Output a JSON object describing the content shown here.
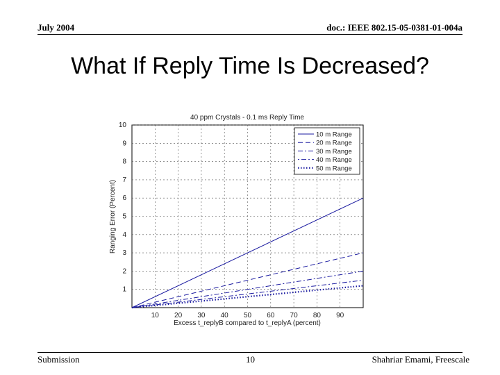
{
  "header": {
    "left": "July 2004",
    "right": "doc.: IEEE 802.15-05-0381-01-004a"
  },
  "slide_title": "What If Reply Time Is Decreased?",
  "footer": {
    "left": "Submission",
    "center": "10",
    "right": "Shahriar Emami, Freescale"
  },
  "chart_data": {
    "type": "line",
    "title": "40 ppm Crystals - 0.1 ms Reply Time",
    "xlabel": "Excess t_replyB compared to t_replyA (percent)",
    "ylabel": "Ranging Error (Percent)",
    "xlim": [
      0,
      100
    ],
    "ylim": [
      0,
      10
    ],
    "x_ticks": [
      "10",
      "20",
      "30",
      "40",
      "50",
      "60",
      "70",
      "80",
      "90"
    ],
    "y_ticks": [
      "1",
      "2",
      "3",
      "4",
      "5",
      "6",
      "7",
      "8",
      "9",
      "10"
    ],
    "grid": true,
    "legend_position": "top-right",
    "series": [
      {
        "name": "10 m Range",
        "style": "solid",
        "color": "#1a1aa0",
        "x": [
          0,
          100
        ],
        "y": [
          0,
          6.0
        ]
      },
      {
        "name": "20 m Range",
        "style": "dashed",
        "color": "#1a1aa0",
        "x": [
          0,
          100
        ],
        "y": [
          0,
          3.0
        ]
      },
      {
        "name": "30 m Range",
        "style": "dashdot",
        "color": "#1a1aa0",
        "x": [
          0,
          100
        ],
        "y": [
          0,
          2.0
        ]
      },
      {
        "name": "40 m Range",
        "style": "dashdot2",
        "color": "#1a1aa0",
        "x": [
          0,
          100
        ],
        "y": [
          0,
          1.5
        ]
      },
      {
        "name": "50 m Range",
        "style": "dotted",
        "color": "#1a1aa0",
        "x": [
          0,
          100
        ],
        "y": [
          0,
          1.2
        ]
      }
    ]
  }
}
